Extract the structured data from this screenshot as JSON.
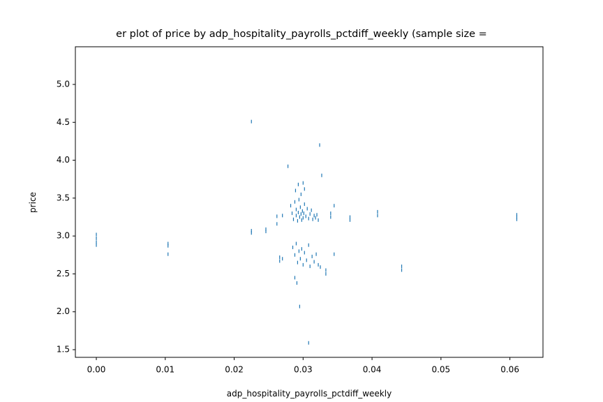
{
  "chart_data": {
    "type": "scatter",
    "title": "er plot of price by adp_hospitality_payrolls_pctdiff_weekly (sample size =",
    "x_label": "adp_hospitality_payrolls_pctdiff_weekly",
    "y_label": "price",
    "color": "#1f77b4",
    "xlim": [
      -0.00304,
      0.0648
    ],
    "ylim": [
      1.399,
      5.497
    ],
    "xticks": [
      {
        "value": 0,
        "label": "0.00"
      },
      {
        "value": 0.01,
        "label": "0.01"
      },
      {
        "value": 0.02,
        "label": "0.02"
      },
      {
        "value": 0.03,
        "label": "0.03"
      },
      {
        "value": 0.04,
        "label": "0.04"
      },
      {
        "value": 0.05,
        "label": "0.05"
      },
      {
        "value": 0.06,
        "label": "0.06"
      }
    ],
    "yticks": [
      1.5,
      {
        "value": 2,
        "label": "2.0"
      },
      2.5,
      {
        "value": 3,
        "label": "3.0"
      },
      3.5,
      {
        "value": 4,
        "label": "4.0"
      },
      4.5,
      {
        "value": 5,
        "label": "5.0"
      }
    ],
    "x": [
      0,
      0,
      0,
      0,
      0.0104,
      0.0104,
      0.0104,
      0.0225,
      0.0225,
      0.0225,
      0.0246,
      0.0246,
      0.0262,
      0.0262,
      0.0266,
      0.0266,
      0.027,
      0.027,
      0.0278,
      0.0282,
      0.0284,
      0.0286,
      0.0288,
      0.029,
      0.029,
      0.0292,
      0.0293,
      0.0294,
      0.0295,
      0.0296,
      0.0297,
      0.0298,
      0.0299,
      0.03,
      0.0301,
      0.0302,
      0.0304,
      0.0306,
      0.0308,
      0.031,
      0.0312,
      0.0314,
      0.0316,
      0.0318,
      0.032,
      0.0322,
      0.0285,
      0.0288,
      0.029,
      0.0292,
      0.0294,
      0.0296,
      0.0298,
      0.03,
      0.0302,
      0.0305,
      0.0308,
      0.031,
      0.0313,
      0.0316,
      0.0319,
      0.0322,
      0.0325,
      0.0288,
      0.0291,
      0.0289,
      0.0293,
      0.0297,
      0.03,
      0.0302,
      0.0324,
      0.0327,
      0.0295,
      0.0308,
      0.0333,
      0.0333,
      0.034,
      0.034,
      0.0345,
      0.0345,
      0.0368,
      0.0368,
      0.0408,
      0.0408,
      0.0443,
      0.0443,
      0.061,
      0.061,
      0.061
    ],
    "values": [
      3.02,
      2.97,
      2.92,
      2.88,
      2.9,
      2.87,
      2.76,
      4.51,
      3.07,
      3.04,
      3.09,
      3.06,
      3.26,
      3.16,
      2.72,
      2.67,
      3.27,
      2.7,
      3.92,
      3.4,
      3.3,
      3.22,
      3.45,
      3.35,
      3.27,
      3.2,
      3.31,
      3.48,
      3.25,
      3.38,
      3.29,
      3.21,
      3.33,
      3.24,
      3.3,
      3.42,
      3.26,
      3.36,
      3.23,
      3.29,
      3.34,
      3.22,
      3.27,
      3.24,
      3.28,
      3.21,
      2.85,
      2.75,
      2.9,
      2.65,
      2.8,
      2.7,
      2.83,
      2.62,
      2.78,
      2.68,
      2.88,
      2.6,
      2.73,
      2.66,
      2.76,
      2.62,
      2.59,
      2.45,
      2.38,
      3.6,
      3.68,
      3.55,
      3.7,
      3.62,
      4.2,
      3.8,
      2.07,
      1.59,
      2.55,
      2.5,
      3.3,
      3.25,
      3.4,
      2.76,
      3.25,
      3.21,
      3.32,
      3.27,
      2.6,
      2.55,
      3.28,
      3.25,
      3.22
    ]
  }
}
